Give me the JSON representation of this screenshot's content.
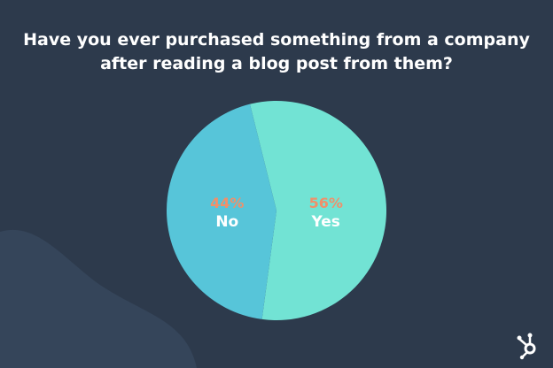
{
  "chart_data": {
    "type": "pie",
    "title": "Have you ever purchased something from a company after reading a blog post from them?",
    "slices": [
      {
        "label": "Yes",
        "value": 56,
        "value_label": "56%",
        "color": "#72e3d4"
      },
      {
        "label": "No",
        "value": 44,
        "value_label": "44%",
        "color": "#57c5d9"
      }
    ],
    "value_label_color": "#f0906a",
    "category_label_color": "#ffffff"
  },
  "colors": {
    "background": "#2d3a4c",
    "blob": "#35455a"
  },
  "logo": {
    "icon": "hubspot-sprocket-icon"
  }
}
